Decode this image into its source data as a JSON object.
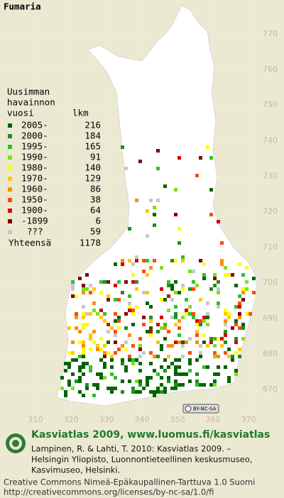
{
  "map": {
    "title": "Fumaria",
    "legend": {
      "heading": [
        "Uusimman",
        "havainnon",
        "vuosi"
      ],
      "count_heading": "lkm",
      "rows": [
        {
          "label": "2005-",
          "count": 216,
          "color": "#006400"
        },
        {
          "label": "2000-",
          "count": 184,
          "color": "#1f8f1f"
        },
        {
          "label": "1995-",
          "count": 165,
          "color": "#2fbf2f"
        },
        {
          "label": "1990-",
          "count": 91,
          "color": "#7de01a"
        },
        {
          "label": "1980-",
          "count": 140,
          "color": "#ffff00"
        },
        {
          "label": "1970-",
          "count": 129,
          "color": "#ffc800"
        },
        {
          "label": "1960-",
          "count": 86,
          "color": "#ff8c00"
        },
        {
          "label": "1950-",
          "count": 38,
          "color": "#ff4a00"
        },
        {
          "label": "1900-",
          "count": 64,
          "color": "#d40000"
        },
        {
          "label": "-1899",
          "count": 6,
          "color": "#800000"
        },
        {
          "label": "???",
          "count": 59,
          "color": "#c8c8c8"
        }
      ],
      "total_label": "Yhteensä",
      "total": 1178
    },
    "yticks": [
      770,
      760,
      750,
      740,
      730,
      720,
      710,
      700,
      690,
      680,
      670
    ],
    "xticks": [
      310,
      320,
      330,
      340,
      350,
      360,
      370
    ],
    "license_badge": "BY-NC-SA"
  },
  "footer": {
    "heading": "Kasviatlas 2009, www.luomus.fi/kasviatlas",
    "citation": [
      "Lampinen, R. & Lahti, T. 2010: Kasviatlas 2009. –",
      "Helsingin Yliopisto, Luonnontieteellinen keskusmuseo,",
      "Kasvimuseo, Helsinki."
    ],
    "license": [
      "Creative Commons Nimeä-Epäkaupallinen-Tarttuva 1.0 Suomi",
      "http://creativecommons.org/licenses/by-nc-sa/1.0/fi"
    ]
  }
}
